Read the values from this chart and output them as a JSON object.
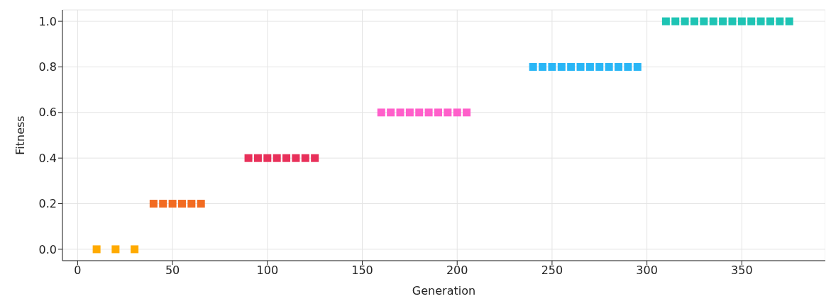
{
  "chart_data": {
    "type": "scatter",
    "xlabel": "Generation",
    "ylabel": "Fitness",
    "xlim": [
      -8,
      394
    ],
    "ylim": [
      -0.05,
      1.05
    ],
    "xticks": [
      0,
      50,
      100,
      150,
      200,
      250,
      300,
      350
    ],
    "yticks": [
      {
        "value": 0,
        "label": "0.0"
      },
      {
        "value": 0.2,
        "label": "0.2"
      },
      {
        "value": 0.4,
        "label": "0.4"
      },
      {
        "value": 0.6,
        "label": "0.6"
      },
      {
        "value": 0.8,
        "label": "0.8"
      },
      {
        "value": 1,
        "label": "1.0"
      }
    ],
    "grid": true,
    "marker": "square",
    "legend": false,
    "series": [
      {
        "color": "#ffaa00",
        "x": [
          10,
          20,
          30
        ],
        "values": [
          0,
          0,
          0
        ]
      },
      {
        "color": "#f26b21",
        "x": [
          40,
          45,
          50,
          55,
          60,
          65
        ],
        "values": [
          0.2,
          0.2,
          0.2,
          0.2,
          0.2,
          0.2
        ]
      },
      {
        "color": "#e8305a",
        "x": [
          90,
          95,
          100,
          105,
          110,
          115,
          120,
          125
        ],
        "values": [
          0.4,
          0.4,
          0.4,
          0.4,
          0.4,
          0.4,
          0.4,
          0.4
        ]
      },
      {
        "color": "#ff5fca",
        "x": [
          160,
          165,
          170,
          175,
          180,
          185,
          190,
          195,
          200,
          205
        ],
        "values": [
          0.6,
          0.6,
          0.6,
          0.6,
          0.6,
          0.6,
          0.6,
          0.6,
          0.6,
          0.6
        ]
      },
      {
        "color": "#29b6f6",
        "x": [
          240,
          245,
          250,
          255,
          260,
          265,
          270,
          275,
          280,
          285,
          290,
          295
        ],
        "values": [
          0.8,
          0.8,
          0.8,
          0.8,
          0.8,
          0.8,
          0.8,
          0.8,
          0.8,
          0.8,
          0.8,
          0.8
        ]
      },
      {
        "color": "#1ec4b4",
        "x": [
          310,
          315,
          320,
          325,
          330,
          335,
          340,
          345,
          350,
          355,
          360,
          365,
          370,
          375
        ],
        "values": [
          1,
          1,
          1,
          1,
          1,
          1,
          1,
          1,
          1,
          1,
          1,
          1,
          1,
          1
        ]
      }
    ]
  }
}
